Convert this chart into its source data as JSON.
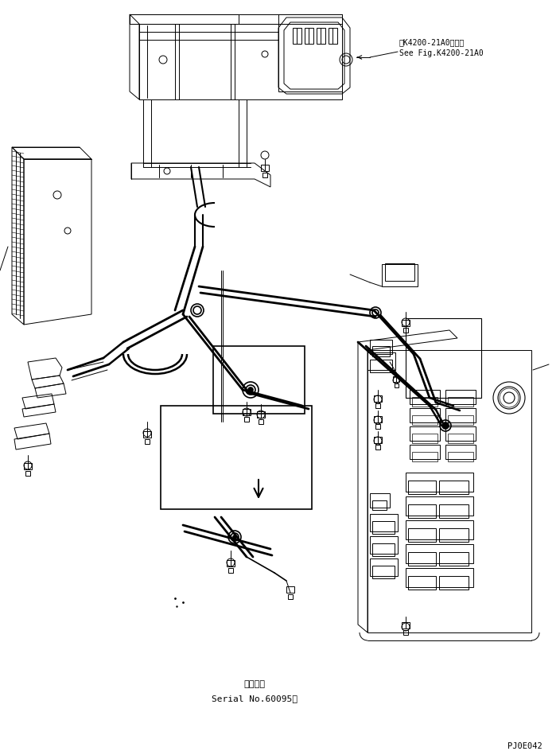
{
  "background_color": "#ffffff",
  "line_color": "#000000",
  "annotation_top_right_line1": "第K4200-21A0図参照",
  "annotation_top_right_line2": "See Fig.K4200-21A0",
  "annotation_bottom_line1": "適用号機",
  "annotation_bottom_line2": "Serial No.60095～",
  "label_bottom_right": "PJ0E042",
  "fig_size": [
    7.04,
    9.49
  ],
  "dpi": 100
}
